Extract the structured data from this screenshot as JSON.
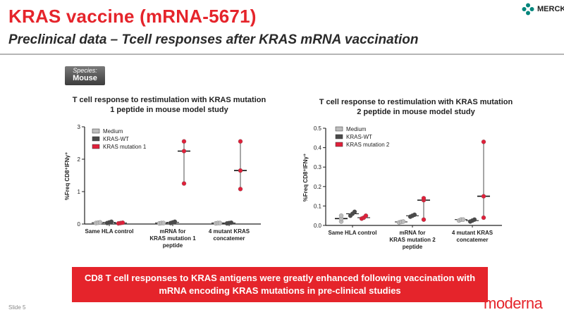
{
  "title": "KRAS vaccine (mRNA-5671)",
  "subtitle": "Preclinical data – Tcell responses after KRAS mRNA vaccination",
  "logo_merck": "MERCK",
  "logo_moderna": "moderna",
  "species": {
    "label": "Species:",
    "value": "Mouse"
  },
  "banner": "CD8 T cell responses to KRAS antigens were greatly enhanced following vaccination with mRNA encoding KRAS mutations in pre-clinical studies",
  "slide_number": "Slide 5",
  "colors": {
    "brand": "#e5242b",
    "medium": "#bdbdbd",
    "wt": "#4a4a4a",
    "mut": "#e0203a"
  },
  "chart_titles": [
    "T cell response to restimulation with KRAS mutation 1 peptide in mouse model study",
    "T cell response to restimulation with KRAS mutation 2 peptide in mouse model study"
  ],
  "chart_data": [
    {
      "type": "scatter",
      "title": "T cell response to restimulation with KRAS mutation 1 peptide in mouse model study",
      "ylabel": "%Freq CD8⁺IFNγ⁺",
      "ylim": [
        0,
        3
      ],
      "yticks": [
        "0",
        "1",
        "2",
        "3"
      ],
      "groups": [
        "Same HLA control",
        "mRNA for KRAS mutation 1 peptide",
        "4 mutant KRAS concatemer"
      ],
      "group_lines": [
        [
          "Same HLA control"
        ],
        [
          "mRNA for",
          "KRAS mutation 1",
          "peptide"
        ],
        [
          "4 mutant KRAS",
          "concatemer"
        ]
      ],
      "legend": [
        "Medium",
        "KRAS-WT",
        "KRAS mutation 1"
      ],
      "series": [
        {
          "name": "Medium",
          "color": "#bdbdbd",
          "values": [
            [
              0.03,
              0.04,
              0.05
            ],
            [
              0.02,
              0.03,
              0.03
            ],
            [
              0.02,
              0.03,
              0.03
            ]
          ]
        },
        {
          "name": "KRAS-WT",
          "color": "#4a4a4a",
          "values": [
            [
              0.03,
              0.05,
              0.07
            ],
            [
              0.03,
              0.05,
              0.07
            ],
            [
              0.02,
              0.03,
              0.04
            ]
          ]
        },
        {
          "name": "KRAS mutation 1",
          "color": "#e0203a",
          "values": [
            [
              0.02,
              0.03,
              0.04
            ],
            [
              1.25,
              2.25,
              2.55
            ],
            [
              1.08,
              1.65,
              2.55
            ]
          ]
        }
      ]
    },
    {
      "type": "scatter",
      "title": "T cell response to restimulation with KRAS mutation 2 peptide in mouse model study",
      "ylabel": "%Freq CD8⁺IFNγ⁺",
      "ylim": [
        0,
        0.5
      ],
      "yticks": [
        "0.0",
        "0.1",
        "0.2",
        "0.3",
        "0.4",
        "0.5"
      ],
      "groups": [
        "Same HLA control",
        "mRNA for KRAS mutation 2 peptide",
        "4 mutant KRAS concatemer"
      ],
      "group_lines": [
        [
          "Same HLA control"
        ],
        [
          "mRNA for",
          "KRAS mutation 2",
          "peptide"
        ],
        [
          "4 mutant KRAS",
          "concatemer"
        ]
      ],
      "legend": [
        "Medium",
        "KRAS-WT",
        "KRAS mutation 2"
      ],
      "series": [
        {
          "name": "Medium",
          "color": "#bdbdbd",
          "values": [
            [
              0.02,
              0.035,
              0.05
            ],
            [
              0.015,
              0.018,
              0.02
            ],
            [
              0.025,
              0.03,
              0.03
            ]
          ]
        },
        {
          "name": "KRAS-WT",
          "color": "#4a4a4a",
          "values": [
            [
              0.05,
              0.06,
              0.07
            ],
            [
              0.045,
              0.05,
              0.055
            ],
            [
              0.02,
              0.025,
              0.03
            ]
          ]
        },
        {
          "name": "KRAS mutation 2",
          "color": "#e0203a",
          "values": [
            [
              0.035,
              0.04,
              0.05
            ],
            [
              0.03,
              0.13,
              0.14
            ],
            [
              0.04,
              0.15,
              0.43
            ]
          ]
        }
      ]
    }
  ]
}
